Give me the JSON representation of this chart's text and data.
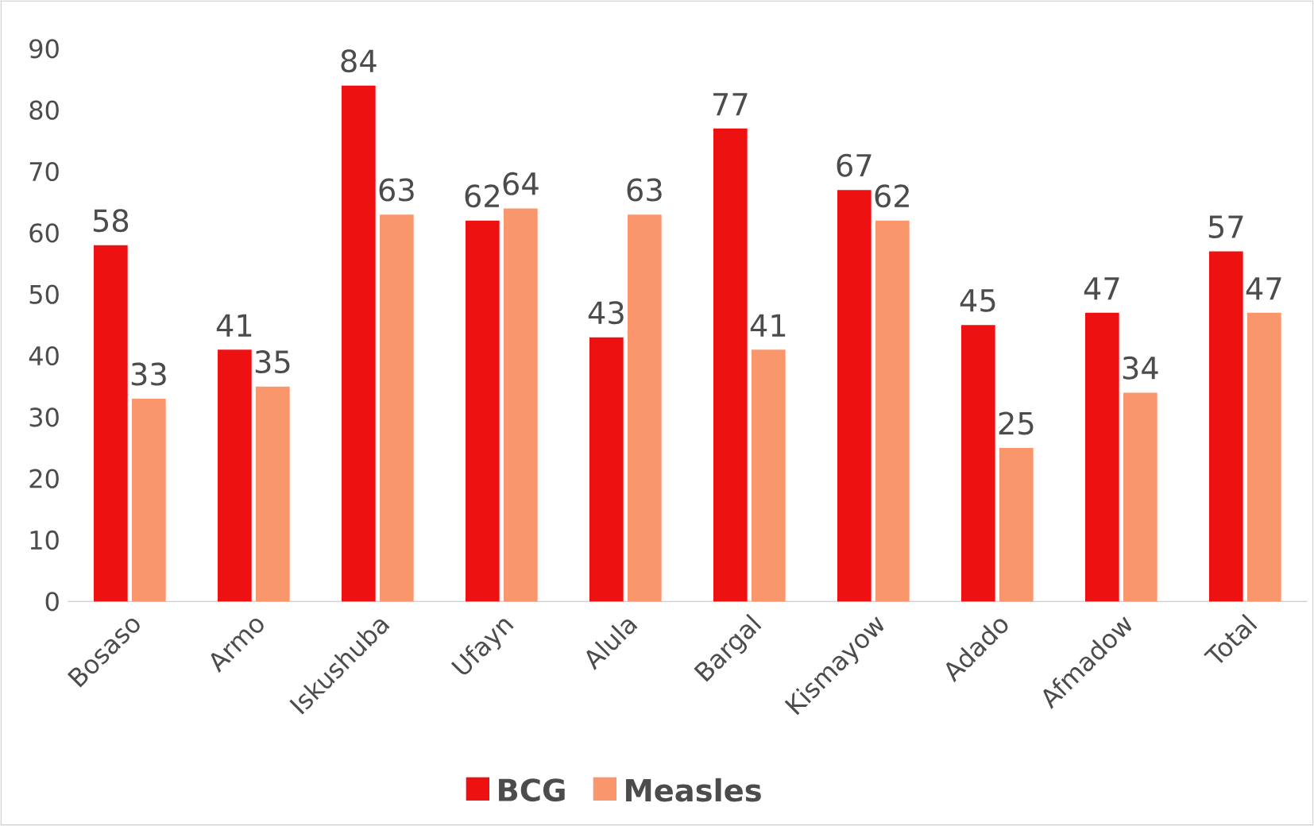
{
  "chart_data": {
    "type": "bar",
    "categories": [
      "Bosaso",
      "Armo",
      "Iskushuba",
      "Ufayn",
      "Alula",
      "Bargal",
      "Kismayow",
      "Adado",
      "Afmadow",
      "Total"
    ],
    "series": [
      {
        "name": "BCG",
        "color": "#ee1111",
        "values": [
          58,
          41,
          84,
          62,
          43,
          77,
          67,
          45,
          47,
          57
        ]
      },
      {
        "name": "Measles",
        "color": "#f9966b",
        "values": [
          33,
          35,
          63,
          64,
          63,
          41,
          62,
          25,
          34,
          47
        ]
      }
    ],
    "ylim": [
      0,
      90
    ],
    "yticks": [
      0,
      10,
      20,
      30,
      40,
      50,
      60,
      70,
      80,
      90
    ],
    "data_labels": true,
    "legend": "bottom"
  }
}
